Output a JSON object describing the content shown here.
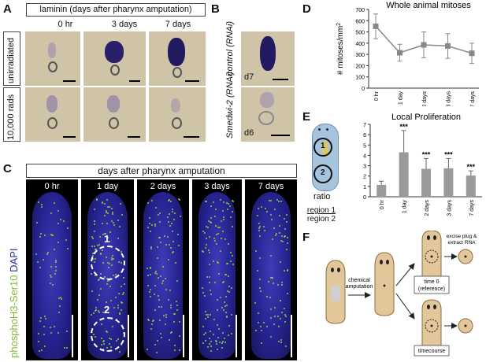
{
  "panelA": {
    "label": "A",
    "header": "laminin (days after pharynx amputation)",
    "columns": [
      "0 hr",
      "3 days",
      "7 days"
    ],
    "rows": [
      "unirradiated",
      "10,000 rads"
    ]
  },
  "panelB": {
    "label": "B",
    "rows": [
      {
        "name": "control (RNAi)",
        "day": "d7"
      },
      {
        "name": "Smedwi-2 (RNAi)",
        "day": "d6"
      }
    ]
  },
  "panelC": {
    "label": "C",
    "header": "days after pharynx amputation",
    "columns": [
      "0 hr",
      "1 day",
      "2 days",
      "3 days",
      "7 days"
    ],
    "stain_green": "phosphoH3-Ser10",
    "stain_blue": "DAPI",
    "region_labels": [
      "1",
      "2"
    ],
    "colors": {
      "green": "#8ccf3a",
      "blue": "#3a36c8"
    }
  },
  "panelD": {
    "label": "D",
    "chart_data": {
      "type": "line",
      "title": "Whole animal mitoses",
      "ylabel": "# mitoses/mm",
      "ylabel_superscript": "2",
      "categories": [
        "0 hr",
        "1 day",
        "2 days",
        "3 days",
        "7 days"
      ],
      "values": [
        550,
        315,
        385,
        375,
        310
      ],
      "errors": [
        110,
        75,
        115,
        110,
        90
      ],
      "ylim": [
        0,
        700
      ],
      "yticks": [
        "0",
        "100",
        "200",
        "300",
        "400",
        "500",
        "600",
        "700"
      ],
      "color": "#888888"
    }
  },
  "panelE": {
    "label": "E",
    "ratio_label": "ratio",
    "numerator": "region 1",
    "denominator": "region 2",
    "region_labels": [
      "1",
      "2"
    ],
    "chart_data": {
      "type": "bar",
      "title": "Local Proliferation",
      "categories": [
        "0 hr",
        "1 day",
        "2 days",
        "3 days",
        "7 days"
      ],
      "values": [
        1.15,
        4.3,
        2.7,
        2.75,
        2.05
      ],
      "errors": [
        0.35,
        2.1,
        1.0,
        0.95,
        0.45
      ],
      "annotations": [
        "",
        "***",
        "***",
        "***",
        "***"
      ],
      "ylim": [
        0,
        7
      ],
      "yticks": [
        "0",
        "1",
        "2",
        "3",
        "4",
        "5",
        "6",
        "7"
      ],
      "color": "#9a9a9a"
    }
  },
  "panelF": {
    "label": "F",
    "step1": "chemical amputation",
    "box_time0_line1": "time 0",
    "box_time0_line2": "(reference)",
    "box_timecourse": "timecourse",
    "excise_line1": "excise plug &",
    "excise_line2": "extract RNA"
  }
}
